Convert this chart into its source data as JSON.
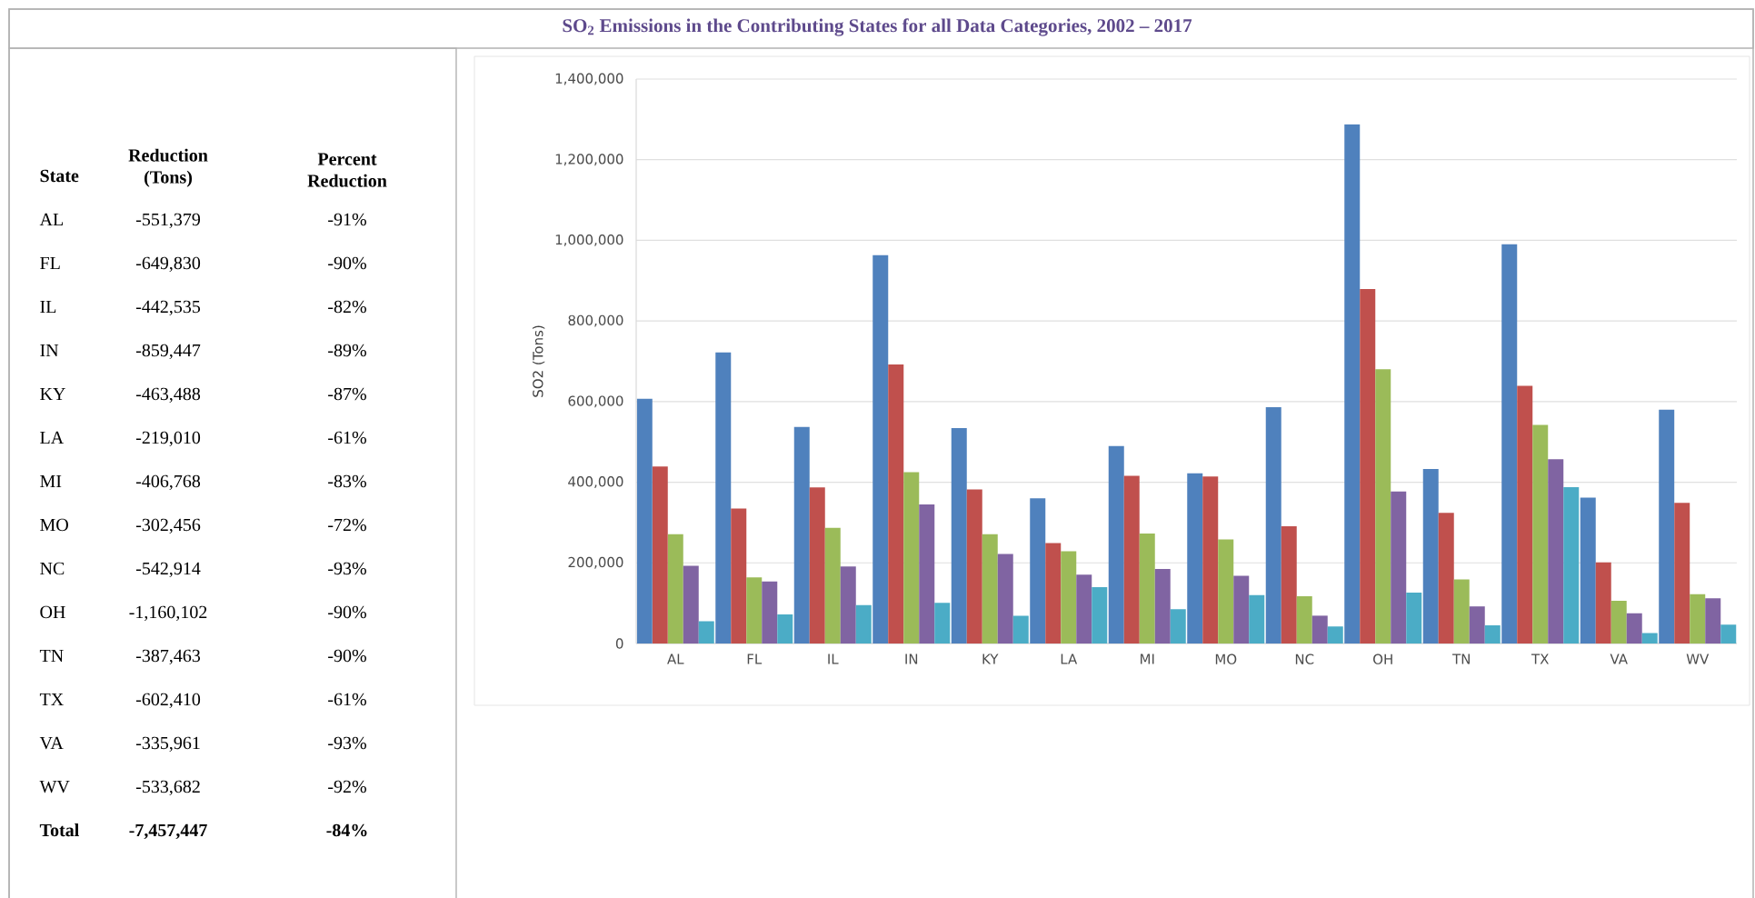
{
  "chart_data": [
    {
      "type": "other",
      "xlabel": "State",
      "categories": [
        "AL",
        "FL",
        "IL",
        "IN",
        "KY",
        "LA",
        "MI",
        "MO",
        "NC",
        "OH",
        "TN",
        "TX",
        "VA",
        "WV",
        "Total"
      ],
      "series": [
        {
          "name": "Reduction (Tons)",
          "values": [
            -551379,
            -649830,
            -442535,
            -859447,
            -463488,
            -219010,
            -406768,
            -302456,
            -542914,
            -1160102,
            -387463,
            -602410,
            -335961,
            -533682,
            -7457447
          ],
          "value_labels": [
            "-551,379",
            "-649,830",
            "-442,535",
            "-859,447",
            "-463,488",
            "-219,010",
            "-406,768",
            "-302,456",
            "-542,914",
            "-1,160,102",
            "-387,463",
            "-602,410",
            "-335,961",
            "-533,682",
            "-7,457,447"
          ]
        },
        {
          "name": "Percent Reduction",
          "values": [
            -91,
            -90,
            -82,
            -89,
            -87,
            -61,
            -83,
            -72,
            -93,
            -90,
            -90,
            -61,
            -93,
            -92,
            -84
          ],
          "value_labels": [
            "-91%",
            "-90%",
            "-82%",
            "-89%",
            "-87%",
            "-61%",
            "-83%",
            "-72%",
            "-93%",
            "-90%",
            "-90%",
            "-61%",
            "-93%",
            "-92%",
            "-84%"
          ]
        }
      ]
    },
    {
      "type": "bar",
      "title": "SO$_{2}$ Emissions in the Contributing States for all Data Categories, 2002 – 2017",
      "ylabel": "SO2 (Tons)",
      "categories": [
        "AL",
        "FL",
        "IL",
        "IN",
        "KY",
        "LA",
        "MI",
        "MO",
        "NC",
        "OH",
        "TN",
        "TX",
        "VA",
        "WV"
      ],
      "series": [
        {
          "color": "#4f81bd",
          "values": [
            607000,
            722000,
            537000,
            963000,
            534000,
            360000,
            490000,
            422000,
            586000,
            1288000,
            433000,
            990000,
            362000,
            580000
          ]
        },
        {
          "color": "#c0504d",
          "values": [
            439000,
            335000,
            387000,
            692000,
            382000,
            249000,
            416000,
            414000,
            291000,
            879000,
            324000,
            639000,
            201000,
            349000
          ]
        },
        {
          "color": "#9bbb59",
          "values": [
            271000,
            164000,
            287000,
            425000,
            271000,
            229000,
            273000,
            258000,
            117000,
            680000,
            159000,
            542000,
            106000,
            122000
          ]
        },
        {
          "color": "#8064a2",
          "values": [
            193000,
            154000,
            191000,
            345000,
            222000,
            171000,
            185000,
            168000,
            69000,
            377000,
            92000,
            457000,
            75000,
            112000
          ]
        },
        {
          "color": "#4bacc6",
          "values": [
            55000,
            72000,
            95000,
            101000,
            69000,
            140000,
            85000,
            120000,
            42000,
            126000,
            45000,
            388000,
            26000,
            47000
          ]
        }
      ],
      "ylim": [
        0,
        1400000
      ],
      "yticks": [
        0,
        {
          "value": 200000,
          "label": "200,000"
        },
        {
          "value": 400000,
          "label": "400,000"
        },
        {
          "value": 600000,
          "label": "600,000"
        },
        {
          "value": 800000,
          "label": "800,000"
        },
        {
          "value": 1000000,
          "label": "1,000,000"
        },
        {
          "value": 1200000,
          "label": "1,200,000"
        },
        {
          "value": 1400000,
          "label": "1,400,000"
        }
      ],
      "grid": "y"
    }
  ]
}
